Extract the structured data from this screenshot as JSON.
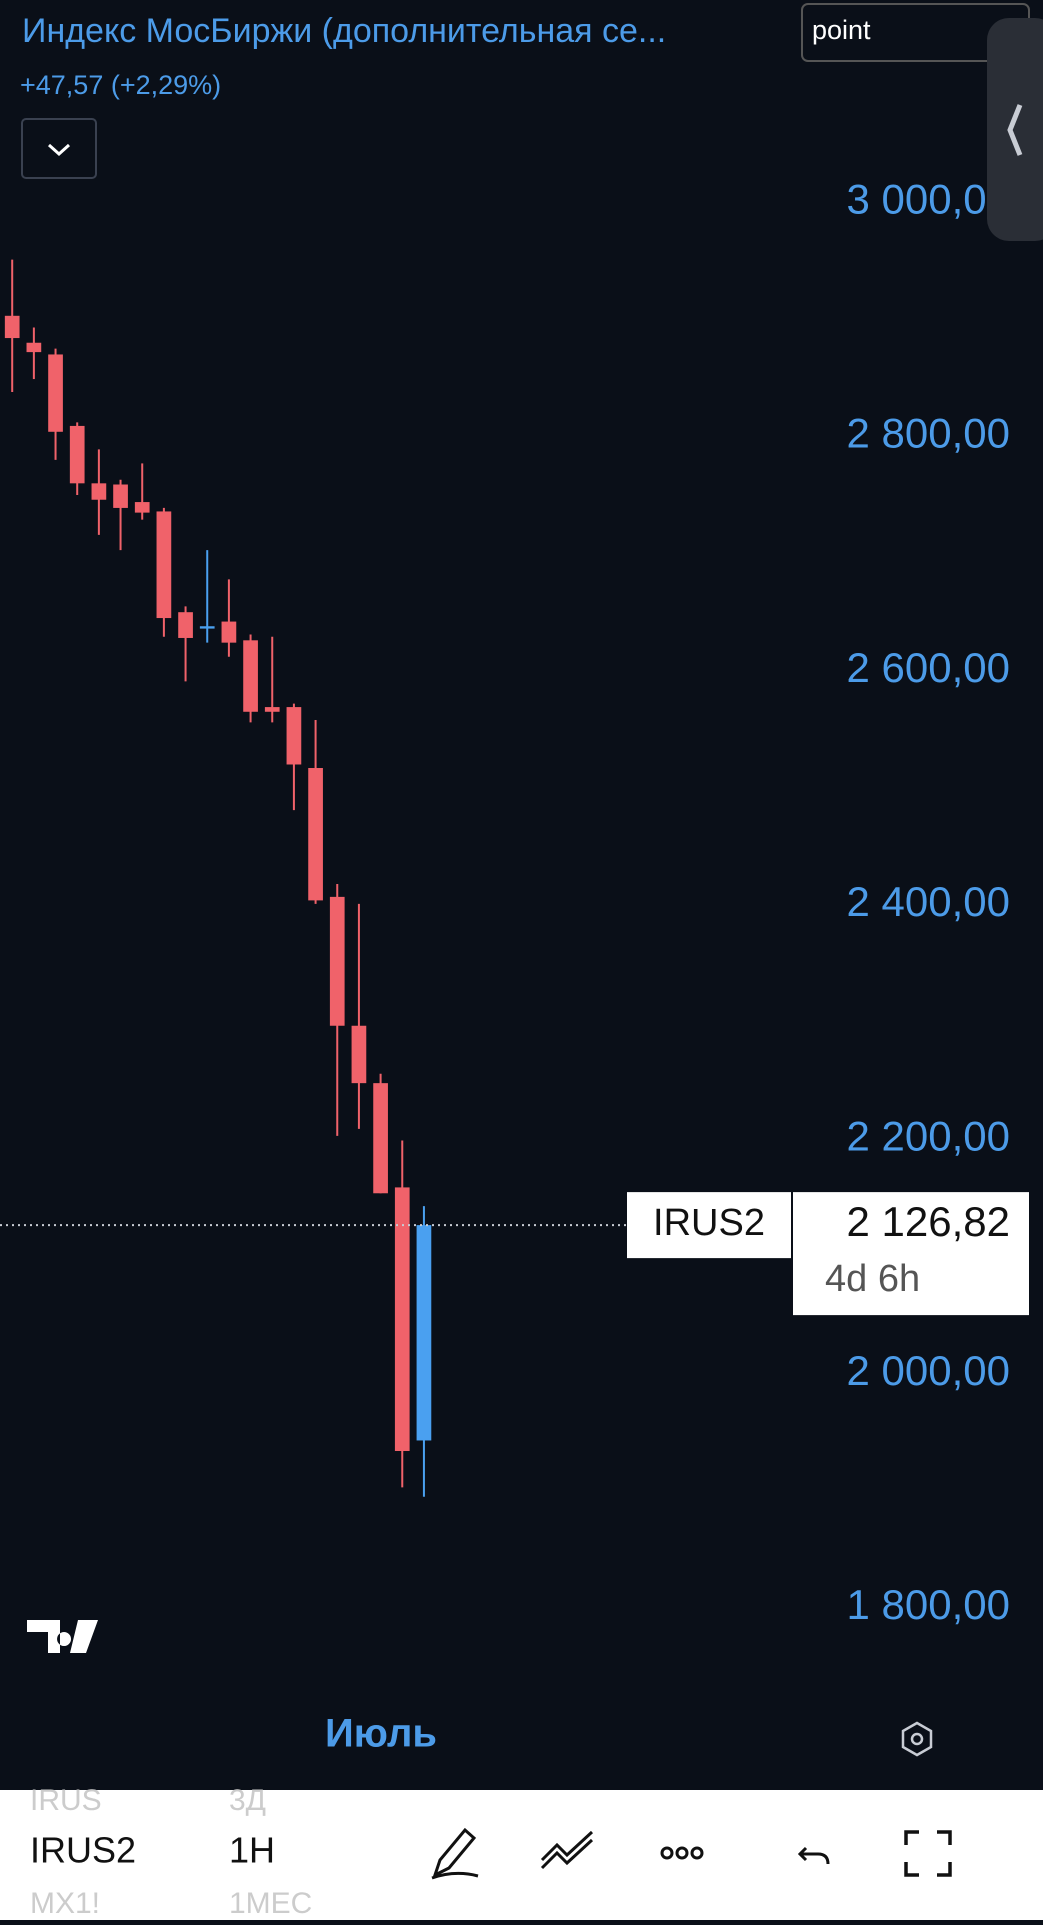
{
  "chart_data": {
    "type": "candlestick",
    "title": "Индекс МосБиржи (дополнительная се...",
    "subtitle": "+47,57 (+2,29%)",
    "x_label": "Июль",
    "open": [
      2903,
      2880,
      2870,
      2809,
      2760,
      2759,
      2744,
      2736,
      2650,
      2636,
      2642,
      2626,
      2569,
      2569,
      2517,
      2407,
      2297,
      2248,
      2159,
      1943
    ],
    "high": [
      2951,
      2893,
      2875,
      2812,
      2789,
      2763,
      2777,
      2739,
      2655,
      2703,
      2678,
      2631,
      2629,
      2572,
      2558,
      2418,
      2401,
      2256,
      2199,
      2143
    ],
    "low": [
      2838,
      2849,
      2780,
      2750,
      2716,
      2703,
      2729,
      2629,
      2591,
      2624,
      2612,
      2556,
      2556,
      2481,
      2401,
      2203,
      2209,
      2154,
      1903,
      1895
    ],
    "close": [
      2884,
      2872,
      2804,
      2760,
      2746,
      2739,
      2735,
      2645,
      2628,
      2638,
      2624,
      2565,
      2565,
      2520,
      2404,
      2297,
      2248,
      2154,
      1934,
      2126.82
    ],
    "up_color": "#4aa0f0",
    "down_color": "#f0626a",
    "ylim": [
      1730,
      3170
    ],
    "yticks": [
      {
        "value": 1800,
        "label": "1 800,00"
      },
      {
        "value": 2000,
        "label": "2 000,00"
      },
      {
        "value": 2200,
        "label": "2 200,00"
      },
      {
        "value": 2400,
        "label": "2 400,00"
      },
      {
        "value": 2600,
        "label": "2 600,00"
      },
      {
        "value": 2800,
        "label": "2 800,00"
      },
      {
        "value": 3000,
        "label": "3 000,00"
      }
    ],
    "last_price": {
      "value": 2126.82,
      "label": "2 126,82"
    },
    "symbol_tag": "IRUS2",
    "countdown": "4d 6h"
  },
  "search": "point",
  "toolbar": {
    "symbols": [
      "IRUS",
      "IRUS2",
      "MX1!"
    ],
    "intervals": [
      "3Д",
      "1H",
      "1МЕС"
    ]
  }
}
